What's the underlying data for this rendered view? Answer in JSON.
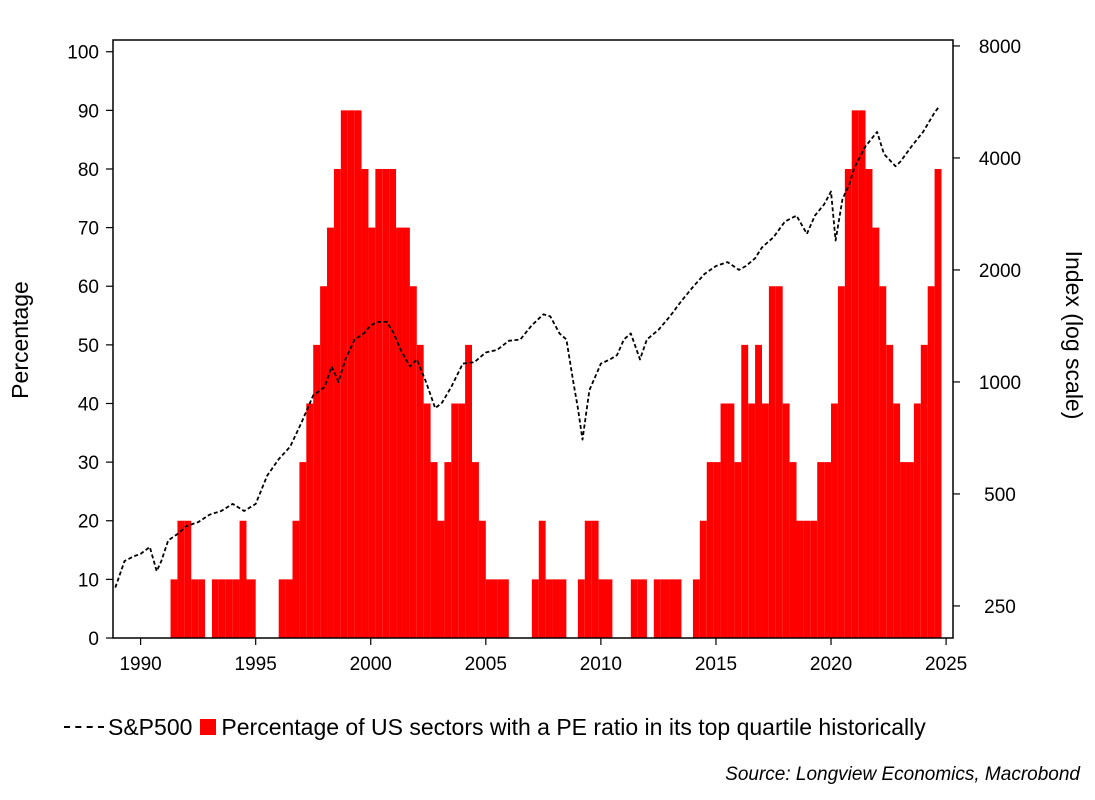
{
  "chart_data": {
    "type": "bar",
    "title": "",
    "xlabel": "",
    "ylabel": "Percentage",
    "y2label": "Index (log scale)",
    "xlim": [
      1988.8,
      2025.3
    ],
    "ylim": [
      0,
      102
    ],
    "y2lim": [
      205,
      8300
    ],
    "y2_scale": "log",
    "x_ticks": [
      1990,
      1995,
      2000,
      2005,
      2010,
      2015,
      2020,
      2025
    ],
    "y_ticks": [
      0,
      10,
      20,
      30,
      40,
      50,
      60,
      70,
      80,
      90,
      100
    ],
    "y2_ticks": [
      250,
      500,
      1000,
      2000,
      4000,
      8000
    ],
    "grid": false,
    "legend_position": "bottom",
    "series": [
      {
        "name": "Percentage of US sectors with a PE ratio in its top quartile historically",
        "type": "bar",
        "axis": "left",
        "color": "#ff0000",
        "x": [
          1991.0,
          1991.3,
          1991.6,
          1991.9,
          1992.2,
          1992.5,
          1992.8,
          1993.1,
          1993.4,
          1993.7,
          1994.0,
          1994.3,
          1994.6,
          1995.0,
          1995.5,
          1996.0,
          1996.3,
          1996.6,
          1996.9,
          1997.2,
          1997.5,
          1997.8,
          1998.1,
          1998.4,
          1998.7,
          1999.0,
          1999.3,
          1999.6,
          1999.9,
          2000.2,
          2000.5,
          2000.8,
          2001.1,
          2001.4,
          2001.7,
          2002.0,
          2002.3,
          2002.6,
          2002.9,
          2003.2,
          2003.5,
          2003.8,
          2004.1,
          2004.4,
          2004.7,
          2005.0,
          2005.5,
          2006.0,
          2006.5,
          2007.0,
          2007.3,
          2007.6,
          2007.9,
          2008.5,
          2009.0,
          2009.3,
          2009.6,
          2009.9,
          2010.5,
          2011.0,
          2011.3,
          2011.6,
          2012.0,
          2012.3,
          2012.6,
          2013.0,
          2013.5,
          2014.0,
          2014.3,
          2014.6,
          2014.9,
          2015.2,
          2015.5,
          2015.8,
          2016.1,
          2016.4,
          2016.7,
          2017.0,
          2017.3,
          2017.6,
          2017.9,
          2018.2,
          2018.5,
          2018.8,
          2019.1,
          2019.4,
          2019.7,
          2020.0,
          2020.3,
          2020.6,
          2020.9,
          2021.2,
          2021.5,
          2021.8,
          2022.1,
          2022.4,
          2022.7,
          2023.0,
          2023.3,
          2023.6,
          2023.9,
          2024.2,
          2024.5
        ],
        "values": [
          0,
          10,
          20,
          20,
          10,
          10,
          0,
          10,
          10,
          10,
          10,
          20,
          10,
          0,
          0,
          10,
          10,
          20,
          30,
          40,
          50,
          60,
          70,
          80,
          90,
          90,
          90,
          80,
          70,
          80,
          80,
          80,
          70,
          70,
          60,
          50,
          40,
          30,
          20,
          30,
          40,
          40,
          50,
          30,
          20,
          10,
          10,
          0,
          0,
          10,
          20,
          10,
          10,
          0,
          10,
          20,
          20,
          10,
          0,
          0,
          10,
          10,
          0,
          10,
          10,
          10,
          0,
          10,
          20,
          30,
          30,
          40,
          40,
          30,
          50,
          40,
          50,
          40,
          60,
          60,
          40,
          30,
          20,
          20,
          20,
          30,
          30,
          40,
          60,
          80,
          90,
          90,
          80,
          70,
          60,
          50,
          40,
          30,
          30,
          40,
          50,
          60,
          80
        ]
      },
      {
        "name": "S&P500",
        "type": "line",
        "axis": "right",
        "color": "#000000",
        "line_style": "dashed",
        "x": [
          1988.9,
          1989.3,
          1989.7,
          1990.0,
          1990.4,
          1990.7,
          1990.9,
          1991.2,
          1991.6,
          1992.0,
          1992.5,
          1993.0,
          1993.5,
          1994.0,
          1994.5,
          1995.0,
          1995.5,
          1996.0,
          1996.5,
          1997.0,
          1997.5,
          1998.0,
          1998.3,
          1998.6,
          1998.9,
          1999.3,
          1999.7,
          2000.0,
          2000.3,
          2000.7,
          2001.0,
          2001.3,
          2001.7,
          2002.0,
          2002.4,
          2002.8,
          2003.1,
          2003.5,
          2004.0,
          2004.5,
          2005.0,
          2005.5,
          2006.0,
          2006.5,
          2007.0,
          2007.5,
          2007.8,
          2008.2,
          2008.5,
          2008.8,
          2009.0,
          2009.2,
          2009.5,
          2010.0,
          2010.4,
          2010.7,
          2011.0,
          2011.3,
          2011.7,
          2012.0,
          2012.5,
          2013.0,
          2013.5,
          2014.0,
          2014.5,
          2015.0,
          2015.5,
          2016.0,
          2016.3,
          2016.7,
          2017.0,
          2017.5,
          2018.0,
          2018.5,
          2018.95,
          2019.3,
          2019.7,
          2020.0,
          2020.2,
          2020.5,
          2020.8,
          2021.0,
          2021.5,
          2022.0,
          2022.3,
          2022.8,
          2023.0,
          2023.5,
          2024.0,
          2024.5,
          2024.7
        ],
        "values": [
          280,
          330,
          340,
          345,
          360,
          310,
          330,
          375,
          390,
          410,
          420,
          440,
          450,
          470,
          450,
          470,
          560,
          620,
          670,
          780,
          920,
          970,
          1100,
          1000,
          1150,
          1300,
          1350,
          1420,
          1450,
          1450,
          1350,
          1220,
          1100,
          1150,
          1000,
          850,
          880,
          970,
          1120,
          1130,
          1200,
          1220,
          1290,
          1300,
          1420,
          1520,
          1500,
          1350,
          1300,
          1000,
          850,
          700,
          950,
          1120,
          1150,
          1180,
          1300,
          1350,
          1150,
          1300,
          1380,
          1500,
          1650,
          1800,
          1950,
          2050,
          2100,
          2000,
          2050,
          2150,
          2300,
          2450,
          2700,
          2800,
          2500,
          2800,
          3000,
          3250,
          2400,
          3100,
          3400,
          3750,
          4300,
          4700,
          4100,
          3800,
          3900,
          4300,
          4700,
          5300,
          5500
        ]
      }
    ]
  },
  "legend": {
    "line_label": "S&P500",
    "bar_label": "Percentage of US sectors with a PE ratio in its top quartile historically"
  },
  "source": "Source: Longview Economics, Macrobond"
}
